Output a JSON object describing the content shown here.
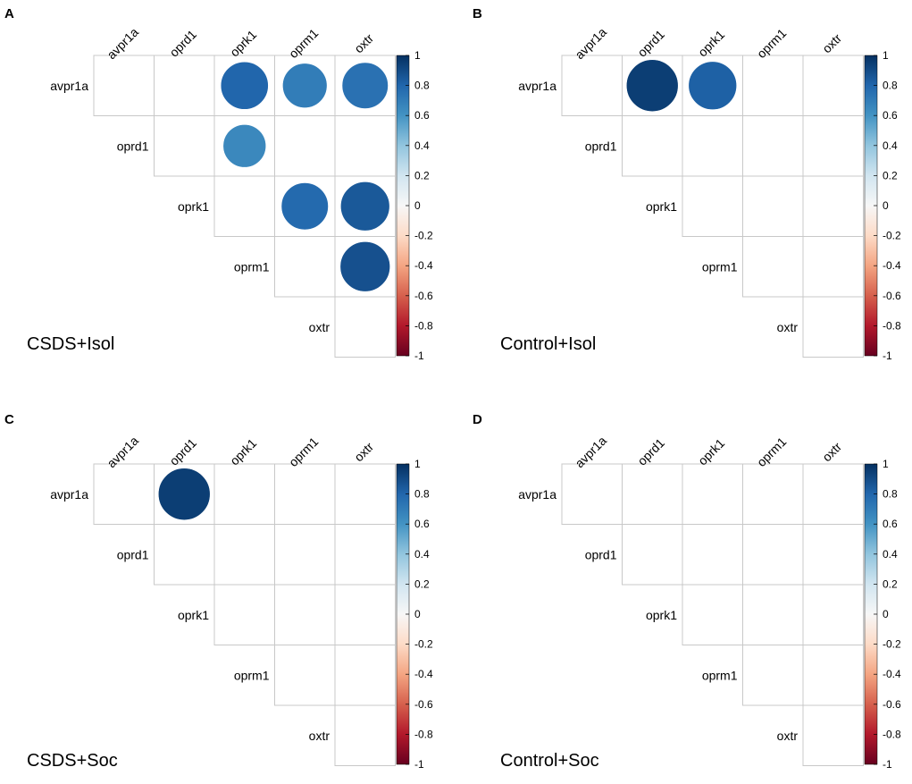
{
  "figure": {
    "panels": [
      {
        "letter": "A",
        "group": "CSDS+Isol"
      },
      {
        "letter": "B",
        "group": "Control+Isol"
      },
      {
        "letter": "C",
        "group": "CSDS+Soc"
      },
      {
        "letter": "D",
        "group": "Control+Soc"
      }
    ]
  },
  "colors": {
    "grid": "#c8c8c8",
    "scale_pos_1": "#053061",
    "scale_zero": "#f7f7f7",
    "scale_neg_1": "#67001f"
  },
  "chart_data": [
    {
      "type": "heatmap",
      "subtype": "correlation-upper-triangle",
      "panel": "A",
      "title": "CSDS+Isol",
      "genes": [
        "avpr1a",
        "oprd1",
        "oprk1",
        "oprm1",
        "oxtr"
      ],
      "legend_ticks": [
        "1",
        "0.8",
        "0.6",
        "0.4",
        "0.2",
        "0",
        "-0.2",
        "-0.4",
        "-0.6",
        "-0.8",
        "-1"
      ],
      "value_range": [
        -1,
        1
      ],
      "cells": [
        {
          "row": "avpr1a",
          "col": "oprk1",
          "value": 0.8
        },
        {
          "row": "avpr1a",
          "col": "oprm1",
          "value": 0.7
        },
        {
          "row": "avpr1a",
          "col": "oxtr",
          "value": 0.75
        },
        {
          "row": "oprd1",
          "col": "oprk1",
          "value": 0.65
        },
        {
          "row": "oprk1",
          "col": "oprm1",
          "value": 0.78
        },
        {
          "row": "oprk1",
          "col": "oxtr",
          "value": 0.85
        },
        {
          "row": "oprm1",
          "col": "oxtr",
          "value": 0.88
        }
      ]
    },
    {
      "type": "heatmap",
      "subtype": "correlation-upper-triangle",
      "panel": "B",
      "title": "Control+Isol",
      "genes": [
        "avpr1a",
        "oprd1",
        "oprk1",
        "oprm1",
        "oxtr"
      ],
      "legend_ticks": [
        "1",
        "0.8",
        "0.6",
        "0.4",
        "0.2",
        "0",
        "-0.2",
        "-0.4",
        "-0.6",
        "-0.8",
        "-1"
      ],
      "value_range": [
        -1,
        1
      ],
      "cells": [
        {
          "row": "avpr1a",
          "col": "oprd1",
          "value": 0.95
        },
        {
          "row": "avpr1a",
          "col": "oprk1",
          "value": 0.82
        }
      ]
    },
    {
      "type": "heatmap",
      "subtype": "correlation-upper-triangle",
      "panel": "C",
      "title": "CSDS+Soc",
      "genes": [
        "avpr1a",
        "oprd1",
        "oprk1",
        "oprm1",
        "oxtr"
      ],
      "legend_ticks": [
        "1",
        "0.8",
        "0.6",
        "0.4",
        "0.2",
        "0",
        "-0.2",
        "-0.4",
        "-0.6",
        "-0.8",
        "-1"
      ],
      "value_range": [
        -1,
        1
      ],
      "cells": [
        {
          "row": "avpr1a",
          "col": "oprd1",
          "value": 0.95
        }
      ]
    },
    {
      "type": "heatmap",
      "subtype": "correlation-upper-triangle",
      "panel": "D",
      "title": "Control+Soc",
      "genes": [
        "avpr1a",
        "oprd1",
        "oprk1",
        "oprm1",
        "oxtr"
      ],
      "legend_ticks": [
        "1",
        "0.8",
        "0.6",
        "0.4",
        "0.2",
        "0",
        "-0.2",
        "-0.4",
        "-0.6",
        "-0.8",
        "-1"
      ],
      "value_range": [
        -1,
        1
      ],
      "cells": []
    }
  ]
}
